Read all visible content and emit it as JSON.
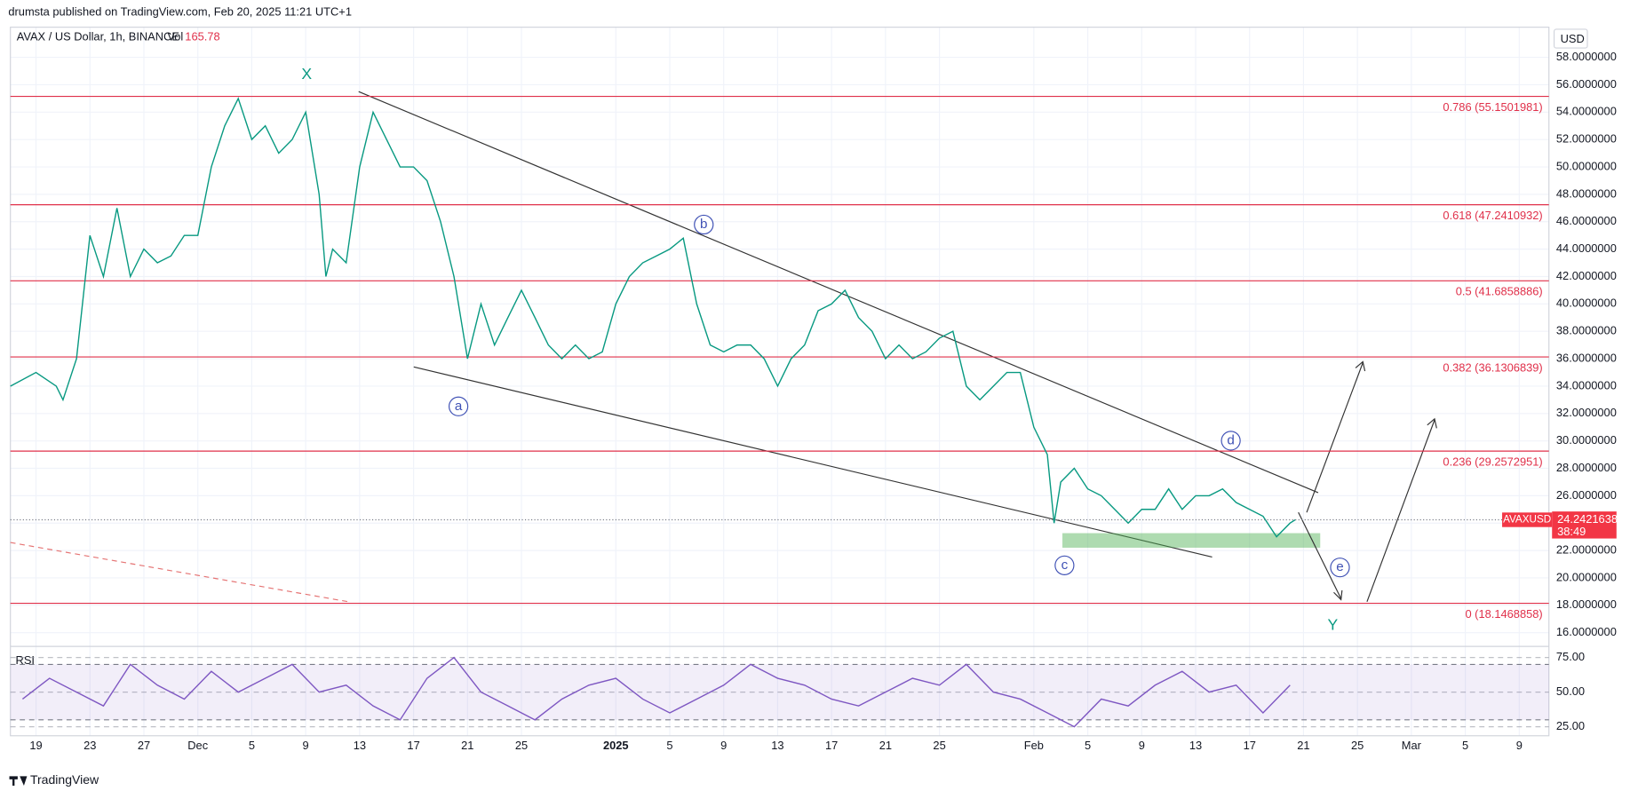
{
  "header": {
    "publisher": "drumsta published on TradingView.com, Feb 20, 2025 11:21 UTC+1",
    "footer": "TradingView"
  },
  "chart_data": [
    {
      "type": "line",
      "title": "AVAX / US Dollar, 1h, BINANCE",
      "vol_label": "Vol",
      "vol_value": 165.78,
      "currency": "USD",
      "countdown": "38:49",
      "xlim": [
        -1.9,
        112.2
      ],
      "ylim": [
        15,
        60.2
      ],
      "grid": true,
      "xticks": [
        {
          "value": 0,
          "label": "19"
        },
        {
          "value": 4,
          "label": "23"
        },
        {
          "value": 8,
          "label": "27"
        },
        {
          "value": 12,
          "label": "Dec"
        },
        {
          "value": 16,
          "label": "5"
        },
        {
          "value": 20,
          "label": "9"
        },
        {
          "value": 24,
          "label": "13"
        },
        {
          "value": 28,
          "label": "17"
        },
        {
          "value": 32,
          "label": "21"
        },
        {
          "value": 36,
          "label": "25"
        },
        {
          "value": 43,
          "label": "2025"
        },
        {
          "value": 47,
          "label": "5"
        },
        {
          "value": 51,
          "label": "9"
        },
        {
          "value": 55,
          "label": "13"
        },
        {
          "value": 59,
          "label": "17"
        },
        {
          "value": 63,
          "label": "21"
        },
        {
          "value": 67,
          "label": "25"
        },
        {
          "value": 74,
          "label": "Feb"
        },
        {
          "value": 78,
          "label": "5"
        },
        {
          "value": 82,
          "label": "9"
        },
        {
          "value": 86,
          "label": "13"
        },
        {
          "value": 90,
          "label": "17"
        },
        {
          "value": 94,
          "label": "21"
        },
        {
          "value": 98,
          "label": "25"
        },
        {
          "value": 102,
          "label": "Mar"
        },
        {
          "value": 106,
          "label": "5"
        },
        {
          "value": 110,
          "label": "9"
        }
      ],
      "yticks": [
        {
          "value": 16,
          "label": "16.0000000"
        },
        {
          "value": 18,
          "label": "18.0000000"
        },
        {
          "value": 20,
          "label": "20.0000000"
        },
        {
          "value": 22,
          "label": "22.0000000"
        },
        {
          "value": 24,
          "label": "24.0000000"
        },
        {
          "value": 26,
          "label": "26.0000000"
        },
        {
          "value": 28,
          "label": "28.0000000"
        },
        {
          "value": 30,
          "label": "30.0000000"
        },
        {
          "value": 32,
          "label": "32.0000000"
        },
        {
          "value": 34,
          "label": "34.0000000"
        },
        {
          "value": 36,
          "label": "36.0000000"
        },
        {
          "value": 38,
          "label": "38.0000000"
        },
        {
          "value": 40,
          "label": "40.0000000"
        },
        {
          "value": 42,
          "label": "42.0000000"
        },
        {
          "value": 44,
          "label": "44.0000000"
        },
        {
          "value": 46,
          "label": "46.0000000"
        },
        {
          "value": 48,
          "label": "48.0000000"
        },
        {
          "value": 50,
          "label": "50.0000000"
        },
        {
          "value": 52,
          "label": "52.0000000"
        },
        {
          "value": 54,
          "label": "54.0000000"
        },
        {
          "value": 56,
          "label": "56.0000000"
        },
        {
          "value": 58,
          "label": "58.0000000"
        }
      ],
      "series": [
        {
          "name": "AVAXUSD",
          "color": "#089981",
          "x": [
            -1.9,
            0,
            1.5,
            2,
            3,
            4,
            5,
            6,
            7,
            8,
            9,
            10,
            11,
            12,
            13,
            14,
            15,
            16,
            17,
            18,
            19,
            20,
            21,
            21.5,
            22,
            23,
            24,
            25,
            26,
            27,
            28,
            29,
            30,
            31,
            32,
            33,
            34,
            35,
            36,
            37,
            38,
            39,
            40,
            41,
            42,
            43,
            44,
            45,
            46,
            47,
            48,
            49,
            50,
            51,
            52,
            53,
            54,
            55,
            56,
            57,
            58,
            59,
            60,
            61,
            62,
            63,
            64,
            65,
            66,
            67,
            68,
            69,
            70,
            71,
            72,
            73,
            73.5,
            74,
            75,
            75.5,
            76,
            77,
            78,
            79,
            80,
            81,
            82,
            83,
            84,
            85,
            86,
            87,
            88,
            89,
            90,
            91,
            92,
            93,
            93.4
          ],
          "values": [
            34,
            35,
            34,
            33,
            36,
            45,
            42,
            47,
            42,
            44,
            43,
            43.5,
            45,
            45,
            50,
            53,
            55,
            52,
            53,
            51,
            52,
            54,
            48,
            42,
            44,
            43,
            50,
            54,
            52,
            50,
            50,
            49,
            46,
            42,
            36,
            40,
            37,
            39,
            41,
            39,
            37,
            36,
            37,
            36,
            36.5,
            40,
            42,
            43,
            43.5,
            44,
            44.8,
            40,
            37,
            36.5,
            37,
            37,
            36,
            34,
            36,
            37,
            39.5,
            40,
            41,
            39,
            38,
            36,
            37,
            36,
            36.5,
            37.5,
            38,
            34,
            33,
            34,
            35,
            35,
            33,
            31,
            29,
            24,
            27,
            28,
            26.5,
            26,
            25,
            24,
            25,
            25,
            26.5,
            25,
            26,
            26,
            26.5,
            25.5,
            25,
            24.5,
            23,
            24,
            24.2421638
          ]
        }
      ],
      "fib_levels": [
        {
          "value": 55.1501981,
          "label": "0.786 (55.1501981)"
        },
        {
          "value": 47.2410932,
          "label": "0.618 (47.2410932)"
        },
        {
          "value": 41.6858886,
          "label": "0.5 (41.6858886)"
        },
        {
          "value": 36.1306839,
          "label": "0.382 (36.1306839)"
        },
        {
          "value": 29.2572951,
          "label": "0.236 (29.2572951)"
        },
        {
          "value": 18.1468858,
          "label": "0 (18.1468858)"
        }
      ],
      "fib_color": "#e0304a",
      "annotations": [
        "X",
        "b",
        "a",
        "c",
        "d",
        "e",
        "Y"
      ]
    },
    {
      "type": "line",
      "title": "RSI",
      "xlim": [
        -1.9,
        112.2
      ],
      "ylim": [
        18.5,
        83
      ],
      "yticks": [
        {
          "value": 25,
          "label": "25.00"
        },
        {
          "value": 50,
          "label": "50.00"
        },
        {
          "value": 75,
          "label": "75.00"
        }
      ],
      "band": [
        30,
        70
      ],
      "series": [
        {
          "color": "#7e57c2",
          "x": [
            -1,
            1,
            3,
            5,
            7,
            9,
            11,
            13,
            15,
            17,
            19,
            21,
            23,
            25,
            27,
            29,
            31,
            33,
            35,
            37,
            39,
            41,
            43,
            45,
            47,
            49,
            51,
            53,
            55,
            57,
            59,
            61,
            63,
            65,
            67,
            69,
            71,
            73,
            75,
            77,
            79,
            81,
            83,
            85,
            87,
            89,
            91,
            93
          ],
          "values": [
            45,
            60,
            50,
            40,
            70,
            55,
            45,
            65,
            50,
            60,
            70,
            50,
            55,
            40,
            30,
            60,
            75,
            50,
            40,
            30,
            45,
            55,
            60,
            45,
            35,
            45,
            55,
            70,
            60,
            55,
            45,
            40,
            50,
            60,
            55,
            70,
            50,
            45,
            35,
            25,
            45,
            40,
            55,
            65,
            50,
            55,
            35,
            55
          ]
        }
      ]
    }
  ]
}
